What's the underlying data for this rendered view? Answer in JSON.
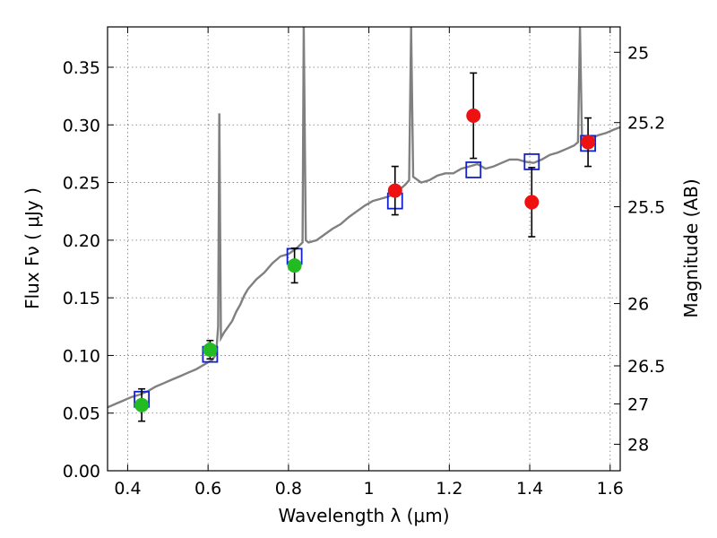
{
  "chart_data": {
    "type": "scatter",
    "xlabel": "Wavelength  λ (μm)",
    "ylabel": "Flux  Fν  ( μJy )",
    "y2label": "Magnitude (AB)",
    "xlim": [
      0.35,
      1.625
    ],
    "ylim": [
      0,
      0.385
    ],
    "x_ticks": [
      0.4,
      0.6,
      0.8,
      1.0,
      1.2,
      1.4,
      1.6
    ],
    "x_tick_labels": [
      "0.4",
      "0.6",
      "0.8",
      "1",
      "1.2",
      "1.4",
      "1.6"
    ],
    "y_ticks": [
      0,
      0.05,
      0.1,
      0.15,
      0.2,
      0.25,
      0.3,
      0.35
    ],
    "y_tick_labels": [
      "0.00",
      "0.05",
      "0.10",
      "0.15",
      "0.20",
      "0.25",
      "0.30",
      "0.35"
    ],
    "y2_ticks": [
      {
        "label": "25",
        "flux": 0.363
      },
      {
        "label": "25.2",
        "flux": 0.302
      },
      {
        "label": "25.5",
        "flux": 0.229
      },
      {
        "label": "26",
        "flux": 0.145
      },
      {
        "label": "26.5",
        "flux": 0.091
      },
      {
        "label": "27",
        "flux": 0.058
      },
      {
        "label": "28",
        "flux": 0.023
      }
    ],
    "grid": true,
    "colors": {
      "model": "#808080",
      "optical_points": "#22bb22",
      "nir_points": "#ee1111",
      "model_boxes": "#1122cc",
      "errorbar": "#000000"
    },
    "series": [
      {
        "kind": "spectrum",
        "points": [
          [
            0.35,
            0.055
          ],
          [
            0.37,
            0.058
          ],
          [
            0.39,
            0.061
          ],
          [
            0.41,
            0.064
          ],
          [
            0.43,
            0.066
          ],
          [
            0.45,
            0.069
          ],
          [
            0.47,
            0.073
          ],
          [
            0.49,
            0.076
          ],
          [
            0.51,
            0.079
          ],
          [
            0.53,
            0.082
          ],
          [
            0.55,
            0.085
          ],
          [
            0.57,
            0.088
          ],
          [
            0.59,
            0.092
          ],
          [
            0.61,
            0.096
          ],
          [
            0.62,
            0.101
          ],
          [
            0.625,
            0.125
          ],
          [
            0.628,
            0.31
          ],
          [
            0.632,
            0.115
          ],
          [
            0.64,
            0.12
          ],
          [
            0.65,
            0.125
          ],
          [
            0.66,
            0.13
          ],
          [
            0.67,
            0.138
          ],
          [
            0.68,
            0.144
          ],
          [
            0.69,
            0.152
          ],
          [
            0.7,
            0.158
          ],
          [
            0.72,
            0.166
          ],
          [
            0.74,
            0.172
          ],
          [
            0.76,
            0.18
          ],
          [
            0.78,
            0.186
          ],
          [
            0.8,
            0.188
          ],
          [
            0.82,
            0.193
          ],
          [
            0.835,
            0.198
          ],
          [
            0.838,
            0.385
          ],
          [
            0.843,
            0.2
          ],
          [
            0.85,
            0.198
          ],
          [
            0.87,
            0.2
          ],
          [
            0.89,
            0.205
          ],
          [
            0.91,
            0.21
          ],
          [
            0.93,
            0.214
          ],
          [
            0.95,
            0.22
          ],
          [
            0.97,
            0.225
          ],
          [
            0.99,
            0.23
          ],
          [
            1.01,
            0.234
          ],
          [
            1.03,
            0.236
          ],
          [
            1.05,
            0.238
          ],
          [
            1.07,
            0.242
          ],
          [
            1.09,
            0.248
          ],
          [
            1.1,
            0.252
          ],
          [
            1.105,
            0.385
          ],
          [
            1.11,
            0.255
          ],
          [
            1.13,
            0.25
          ],
          [
            1.15,
            0.252
          ],
          [
            1.17,
            0.256
          ],
          [
            1.19,
            0.258
          ],
          [
            1.21,
            0.258
          ],
          [
            1.23,
            0.262
          ],
          [
            1.25,
            0.264
          ],
          [
            1.27,
            0.266
          ],
          [
            1.29,
            0.262
          ],
          [
            1.31,
            0.264
          ],
          [
            1.33,
            0.267
          ],
          [
            1.35,
            0.27
          ],
          [
            1.37,
            0.27
          ],
          [
            1.39,
            0.268
          ],
          [
            1.41,
            0.267
          ],
          [
            1.43,
            0.27
          ],
          [
            1.45,
            0.274
          ],
          [
            1.47,
            0.276
          ],
          [
            1.49,
            0.279
          ],
          [
            1.51,
            0.282
          ],
          [
            1.52,
            0.285
          ],
          [
            1.525,
            0.385
          ],
          [
            1.53,
            0.286
          ],
          [
            1.55,
            0.288
          ],
          [
            1.57,
            0.291
          ],
          [
            1.59,
            0.293
          ],
          [
            1.61,
            0.296
          ],
          [
            1.625,
            0.298
          ]
        ]
      },
      {
        "kind": "model-boxes",
        "points": [
          [
            0.435,
            0.062
          ],
          [
            0.605,
            0.101
          ],
          [
            0.815,
            0.186
          ],
          [
            1.065,
            0.234
          ],
          [
            1.26,
            0.261
          ],
          [
            1.405,
            0.268
          ],
          [
            1.545,
            0.284
          ]
        ]
      },
      {
        "kind": "observed-optical",
        "points": [
          [
            0.435,
            0.057,
            0.014
          ],
          [
            0.605,
            0.105,
            0.008
          ],
          [
            0.815,
            0.178,
            0.015
          ]
        ]
      },
      {
        "kind": "observed-nir",
        "points": [
          [
            1.065,
            0.243,
            0.021
          ],
          [
            1.26,
            0.308,
            0.037
          ],
          [
            1.405,
            0.233,
            0.03
          ],
          [
            1.545,
            0.285,
            0.021
          ]
        ]
      }
    ]
  }
}
